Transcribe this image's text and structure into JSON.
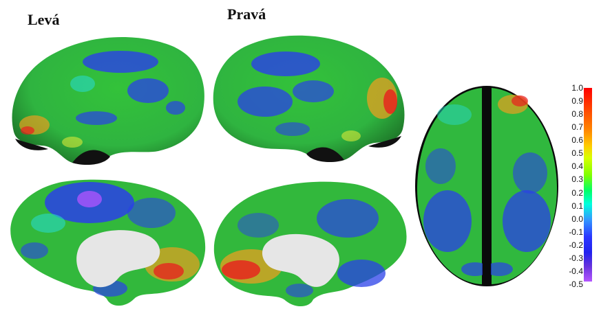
{
  "labels": {
    "left": "Levá",
    "right": "Pravá"
  },
  "colorbar": {
    "ticks": [
      "1.0",
      "0.9",
      "0.8",
      "0.7",
      "0.6",
      "0.5",
      "0.4",
      "0.3",
      "0.2",
      "0.1",
      "0.0",
      "-0.1",
      "-0.2",
      "-0.3",
      "-0.4",
      "-0.5"
    ],
    "max": 1.0,
    "min": -0.5
  },
  "colors": {
    "green": "#3cc83c",
    "blue": "#2a40e8",
    "red": "#e81e1e",
    "yellow": "#d8e838",
    "cyan": "#28d8c8",
    "white_matter": "#e6e6e6"
  }
}
